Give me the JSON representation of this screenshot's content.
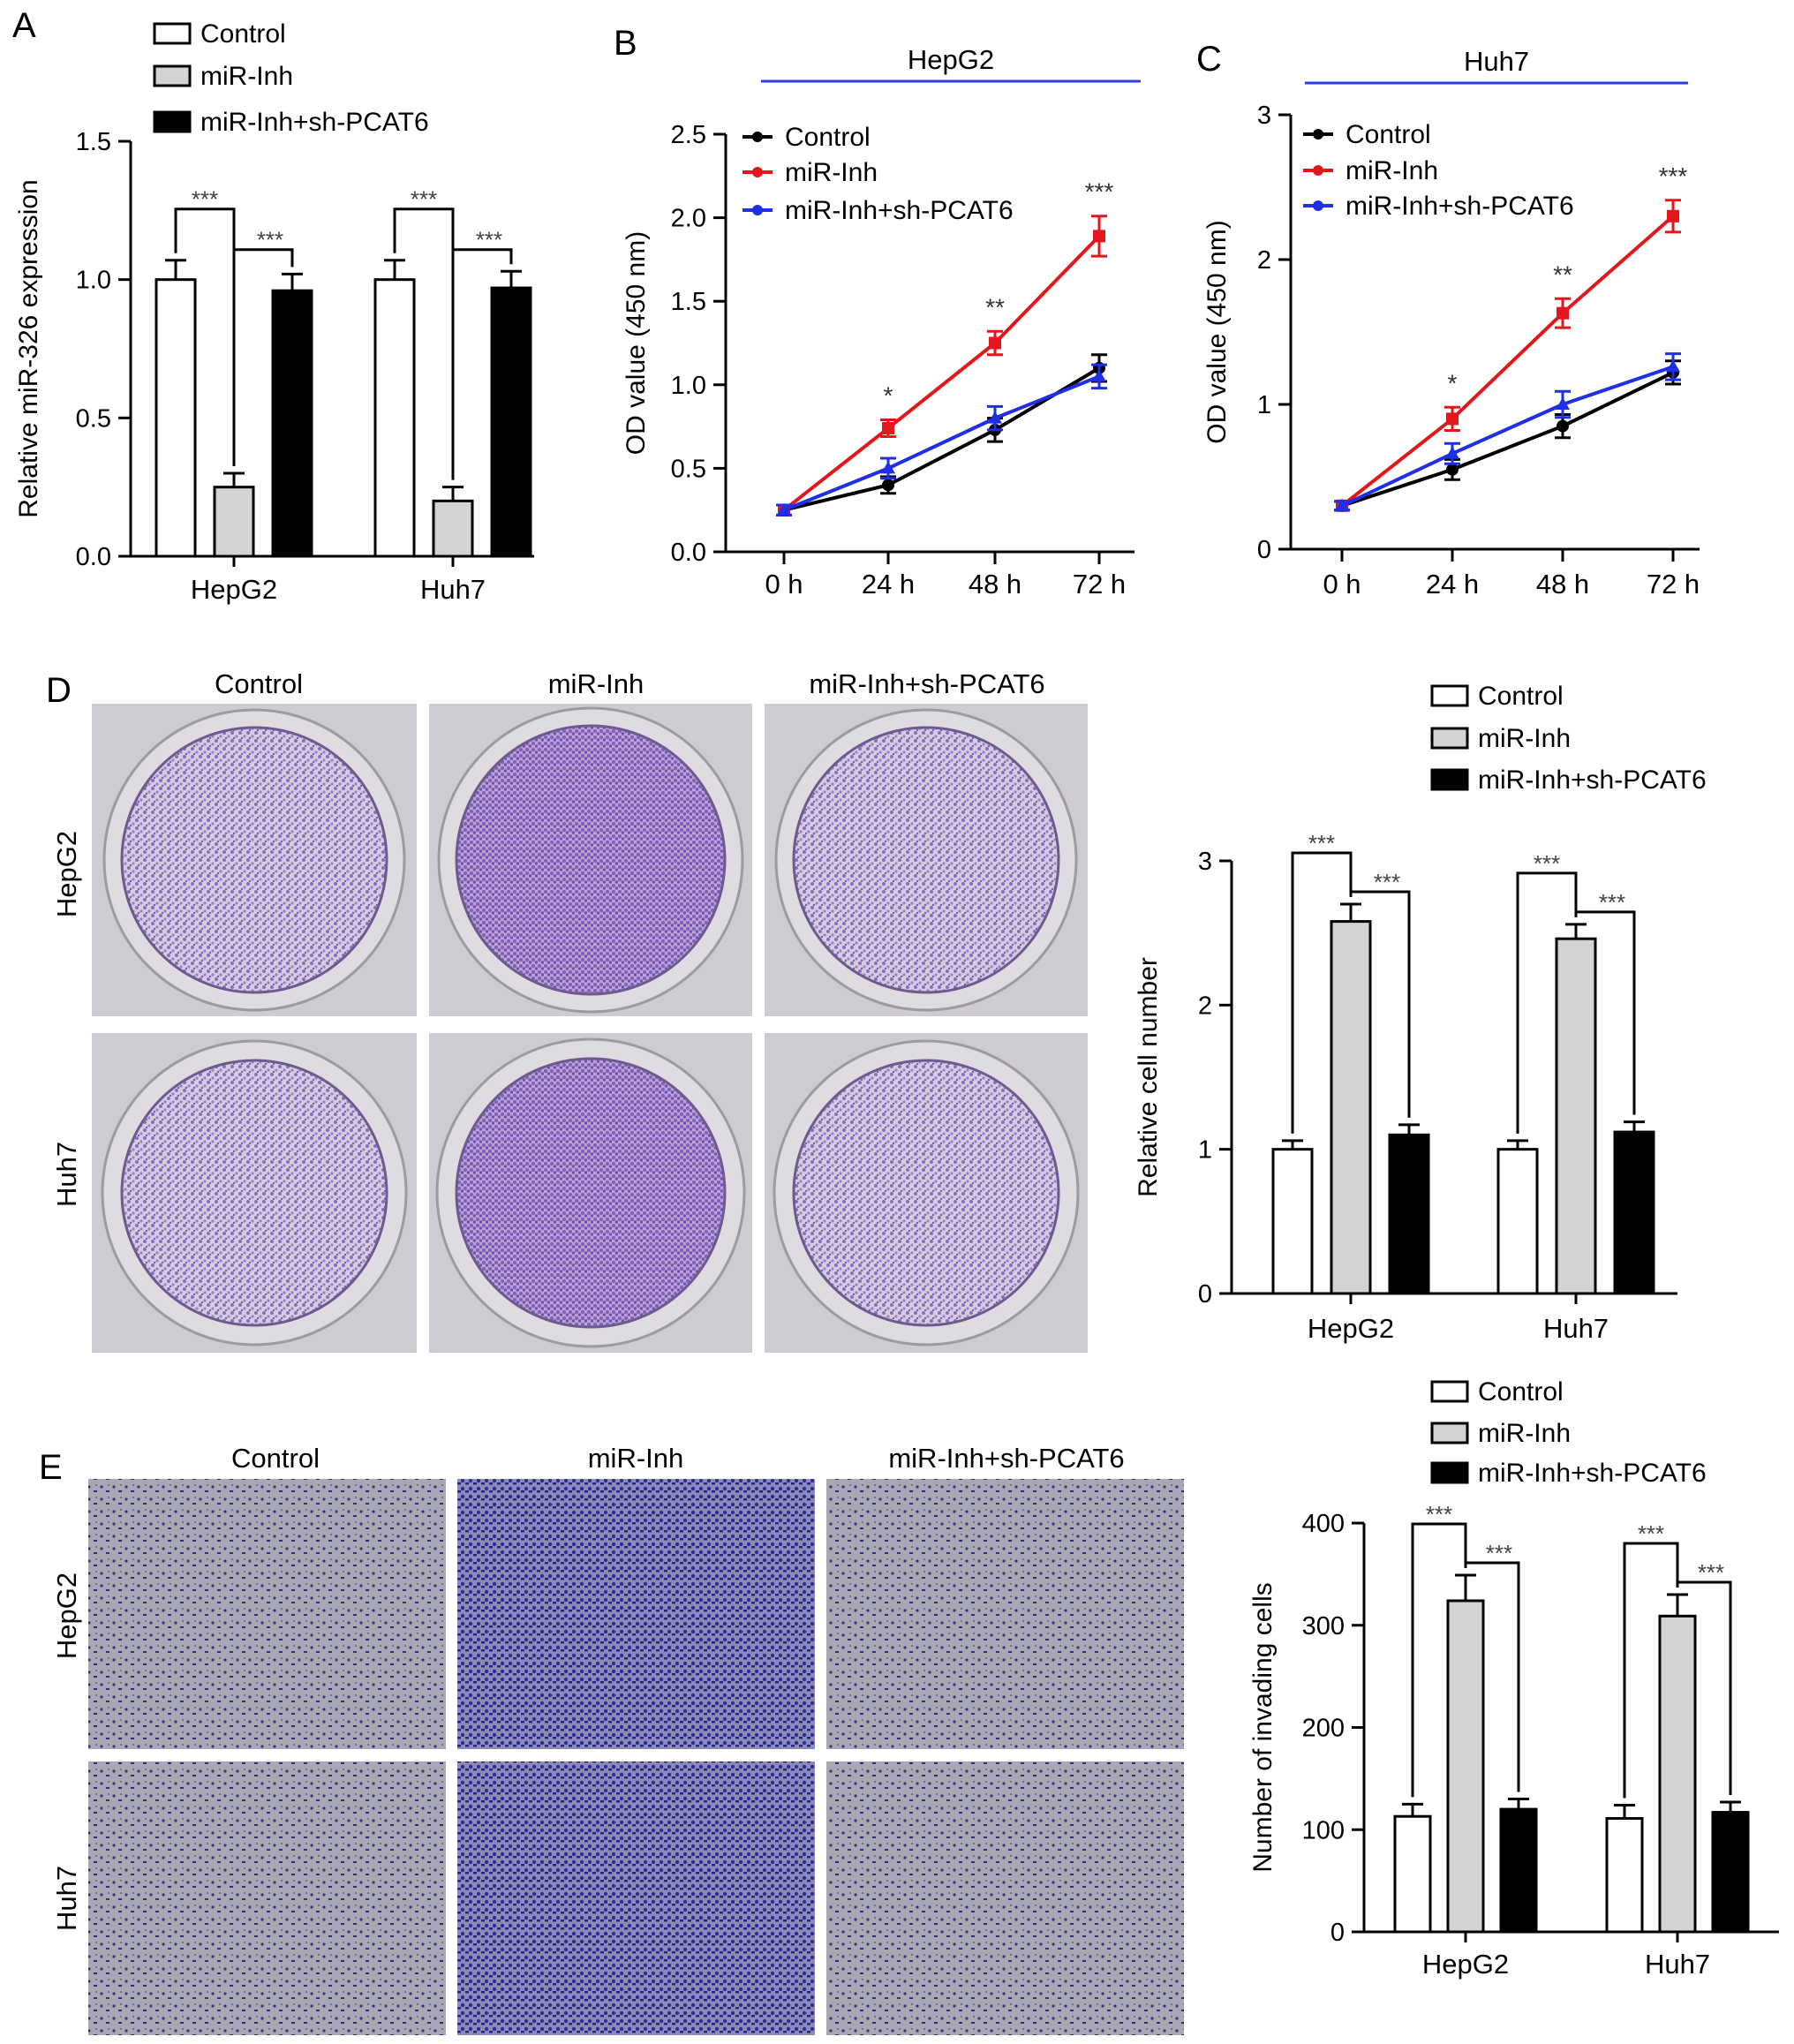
{
  "colors": {
    "control": "#ffffff",
    "miR_Inh": "#d3d3d3",
    "miR_Inh_sh": "#000000",
    "line_control": "#000000",
    "line_miR_Inh": "#e3161c",
    "line_miR_Inh_sh": "#1f2ee8",
    "cell_line_bar": "#2e3bf0",
    "stain_colony": "#8a6bbf",
    "stain_invasion": "#2b2a8a"
  },
  "panels": {
    "A": {
      "letter": "A"
    },
    "B": {
      "letter": "B",
      "cell_line": "HepG2"
    },
    "C": {
      "letter": "C",
      "cell_line": "Huh7"
    },
    "D": {
      "letter": "D",
      "col_labels": [
        "Control",
        "miR-Inh",
        "miR-Inh+sh-PCAT6"
      ],
      "row_labels": [
        "HepG2",
        "Huh7"
      ]
    },
    "E": {
      "letter": "E",
      "col_labels": [
        "Control",
        "miR-Inh",
        "miR-Inh+sh-PCAT6"
      ],
      "row_labels": [
        "HepG2",
        "Huh7"
      ]
    }
  },
  "chart_data": [
    {
      "id": "A",
      "type": "bar",
      "ylabel": "Relative miR-326 expression",
      "categories": [
        "HepG2",
        "Huh7"
      ],
      "ylim": [
        0,
        1.5
      ],
      "yticks": [
        "0.0",
        "0.5",
        "1.0",
        "1.5"
      ],
      "legend": [
        "Control",
        "miR-Inh",
        "miR-Inh+sh-PCAT6"
      ],
      "series": [
        {
          "name": "Control",
          "values": [
            1.0,
            1.0
          ],
          "errors": [
            0.07,
            0.07
          ]
        },
        {
          "name": "miR-Inh",
          "values": [
            0.25,
            0.2
          ],
          "errors": [
            0.05,
            0.05
          ]
        },
        {
          "name": "miR-Inh+sh-PCAT6",
          "values": [
            0.96,
            0.97
          ],
          "errors": [
            0.06,
            0.06
          ]
        }
      ],
      "significance": [
        "***",
        "***",
        "***",
        "***"
      ]
    },
    {
      "id": "B",
      "type": "line",
      "ylabel": "OD value (450 nm)",
      "x": [
        "0 h",
        "24 h",
        "48 h",
        "72 h"
      ],
      "ylim": [
        0,
        2.5
      ],
      "yticks": [
        "0.0",
        "0.5",
        "1.0",
        "1.5",
        "2.0",
        "2.5"
      ],
      "legend": [
        "Control",
        "miR-Inh",
        "miR-Inh+sh-PCAT6"
      ],
      "series": [
        {
          "name": "Control",
          "values": [
            0.25,
            0.4,
            0.73,
            1.1
          ],
          "errors": [
            0.03,
            0.05,
            0.07,
            0.08
          ]
        },
        {
          "name": "miR-Inh",
          "values": [
            0.25,
            0.74,
            1.25,
            1.89
          ],
          "errors": [
            0.03,
            0.05,
            0.07,
            0.12
          ]
        },
        {
          "name": "miR-Inh+sh-PCAT6",
          "values": [
            0.25,
            0.5,
            0.8,
            1.05
          ],
          "errors": [
            0.03,
            0.06,
            0.07,
            0.07
          ]
        }
      ],
      "significance": [
        "",
        "*",
        "**",
        "***"
      ]
    },
    {
      "id": "C",
      "type": "line",
      "ylabel": "OD value (450 nm)",
      "x": [
        "0 h",
        "24 h",
        "48 h",
        "72 h"
      ],
      "ylim": [
        0,
        3
      ],
      "yticks": [
        "0",
        "1",
        "2",
        "3"
      ],
      "legend": [
        "Control",
        "miR-Inh",
        "miR-Inh+sh-PCAT6"
      ],
      "series": [
        {
          "name": "Control",
          "values": [
            0.3,
            0.55,
            0.85,
            1.22
          ],
          "errors": [
            0.03,
            0.07,
            0.08,
            0.08
          ]
        },
        {
          "name": "miR-Inh",
          "values": [
            0.3,
            0.9,
            1.63,
            2.3
          ],
          "errors": [
            0.03,
            0.08,
            0.1,
            0.11
          ]
        },
        {
          "name": "miR-Inh+sh-PCAT6",
          "values": [
            0.3,
            0.66,
            1.0,
            1.26
          ],
          "errors": [
            0.03,
            0.07,
            0.09,
            0.09
          ]
        }
      ],
      "significance": [
        "",
        "*",
        "**",
        "***"
      ]
    },
    {
      "id": "D",
      "type": "bar",
      "ylabel": "Relative cell number",
      "categories": [
        "HepG2",
        "Huh7"
      ],
      "ylim": [
        0,
        3
      ],
      "yticks": [
        "0",
        "1",
        "2",
        "3"
      ],
      "legend": [
        "Control",
        "miR-Inh",
        "miR-Inh+sh-PCAT6"
      ],
      "series": [
        {
          "name": "Control",
          "values": [
            1.0,
            1.0
          ],
          "errors": [
            0.06,
            0.06
          ]
        },
        {
          "name": "miR-Inh",
          "values": [
            2.58,
            2.46
          ],
          "errors": [
            0.12,
            0.1
          ]
        },
        {
          "name": "miR-Inh+sh-PCAT6",
          "values": [
            1.1,
            1.12
          ],
          "errors": [
            0.07,
            0.07
          ]
        }
      ],
      "significance": [
        "***",
        "***",
        "***",
        "***"
      ]
    },
    {
      "id": "E",
      "type": "bar",
      "ylabel": "Number of invading cells",
      "categories": [
        "HepG2",
        "Huh7"
      ],
      "ylim": [
        0,
        400
      ],
      "yticks": [
        "0",
        "100",
        "200",
        "300",
        "400"
      ],
      "legend": [
        "Control",
        "miR-Inh",
        "miR-Inh+sh-PCAT6"
      ],
      "series": [
        {
          "name": "Control",
          "values": [
            113,
            111
          ],
          "errors": [
            12,
            13
          ]
        },
        {
          "name": "miR-Inh",
          "values": [
            324,
            309
          ],
          "errors": [
            25,
            21
          ]
        },
        {
          "name": "miR-Inh+sh-PCAT6",
          "values": [
            120,
            117
          ],
          "errors": [
            10,
            10
          ]
        }
      ],
      "significance": [
        "***",
        "***",
        "***",
        "***"
      ]
    }
  ]
}
